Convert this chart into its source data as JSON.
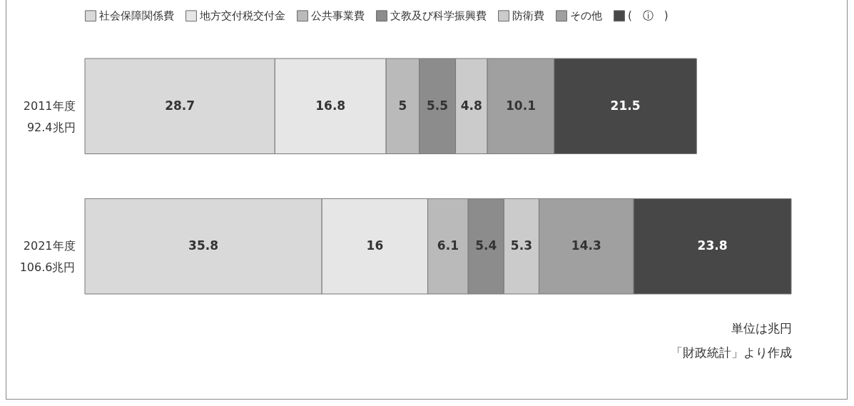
{
  "chart_data": {
    "type": "bar",
    "orientation": "horizontal",
    "stacked": true,
    "data_labels": true,
    "legend": "top",
    "categories": [
      "2011年度\n92.4兆円",
      "2021年度\n106.6兆円"
    ],
    "series": [
      {
        "name": "社会保障関係費",
        "color": "#d9d9d9",
        "values": [
          28.7,
          35.8
        ]
      },
      {
        "name": "地方交付税交付金",
        "color": "#e6e6e6",
        "values": [
          16.8,
          16
        ]
      },
      {
        "name": "公共事業費",
        "color": "#bababa",
        "values": [
          5,
          6.1
        ]
      },
      {
        "name": "文教及び科学振興費",
        "color": "#8c8c8c",
        "values": [
          5.5,
          5.4
        ]
      },
      {
        "name": "防衛費",
        "color": "#cbcbcb",
        "values": [
          4.8,
          5.3
        ]
      },
      {
        "name": "その他",
        "color": "#a0a0a0",
        "values": [
          10.1,
          14.3
        ]
      },
      {
        "name": "(　ⓘ　)",
        "color": "#474747",
        "values": [
          21.5,
          23.8
        ]
      }
    ],
    "annotations": [
      "単位は兆円",
      "「財政統計」より作成"
    ]
  }
}
